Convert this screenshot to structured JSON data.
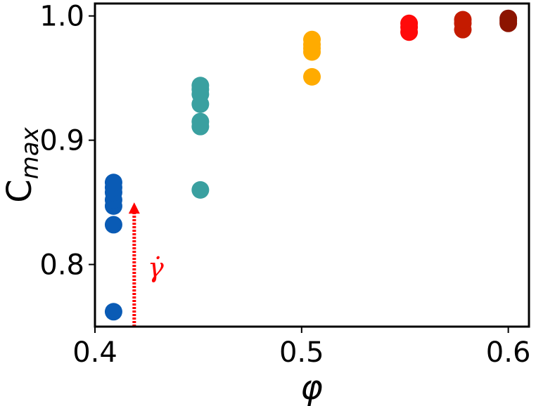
{
  "chart_data": {
    "type": "scatter",
    "xlabel": "φ",
    "ylabel": {
      "base": "C",
      "subscript": "max"
    },
    "xlim": [
      0.4,
      0.61
    ],
    "ylim": [
      0.75,
      1.01
    ],
    "xticks": [
      0.4,
      0.5,
      0.6
    ],
    "xtick_labels": [
      "0.4",
      "0.5",
      "0.6"
    ],
    "yticks": [
      0.8,
      0.9,
      1.0
    ],
    "ytick_labels": [
      "0.8",
      "0.9",
      "1.0"
    ],
    "grid": false,
    "series": [
      {
        "x": 0.409,
        "values": [
          0.762,
          0.832,
          0.847,
          0.852,
          0.858,
          0.862,
          0.866
        ],
        "color": "#0a5bb5"
      },
      {
        "x": 0.451,
        "values": [
          0.86,
          0.911,
          0.915,
          0.929,
          0.937,
          0.941,
          0.944
        ],
        "color": "#3aa0a0"
      },
      {
        "x": 0.505,
        "values": [
          0.951,
          0.971,
          0.974,
          0.977,
          0.981
        ],
        "color": "#ffab00"
      },
      {
        "x": 0.552,
        "values": [
          0.987,
          0.991,
          0.994
        ],
        "color": "#ff0a0a"
      },
      {
        "x": 0.578,
        "values": [
          0.989,
          0.994,
          0.997
        ],
        "color": "#c41b00"
      },
      {
        "x": 0.6,
        "values": [
          0.994,
          0.996,
          0.998
        ],
        "color": "#8c1400"
      }
    ],
    "annotation": {
      "label": "γ̇",
      "color": "#ff0000",
      "arrow_x": 0.419,
      "arrow_from_y": 0.75,
      "arrow_to_y": 0.85
    }
  }
}
